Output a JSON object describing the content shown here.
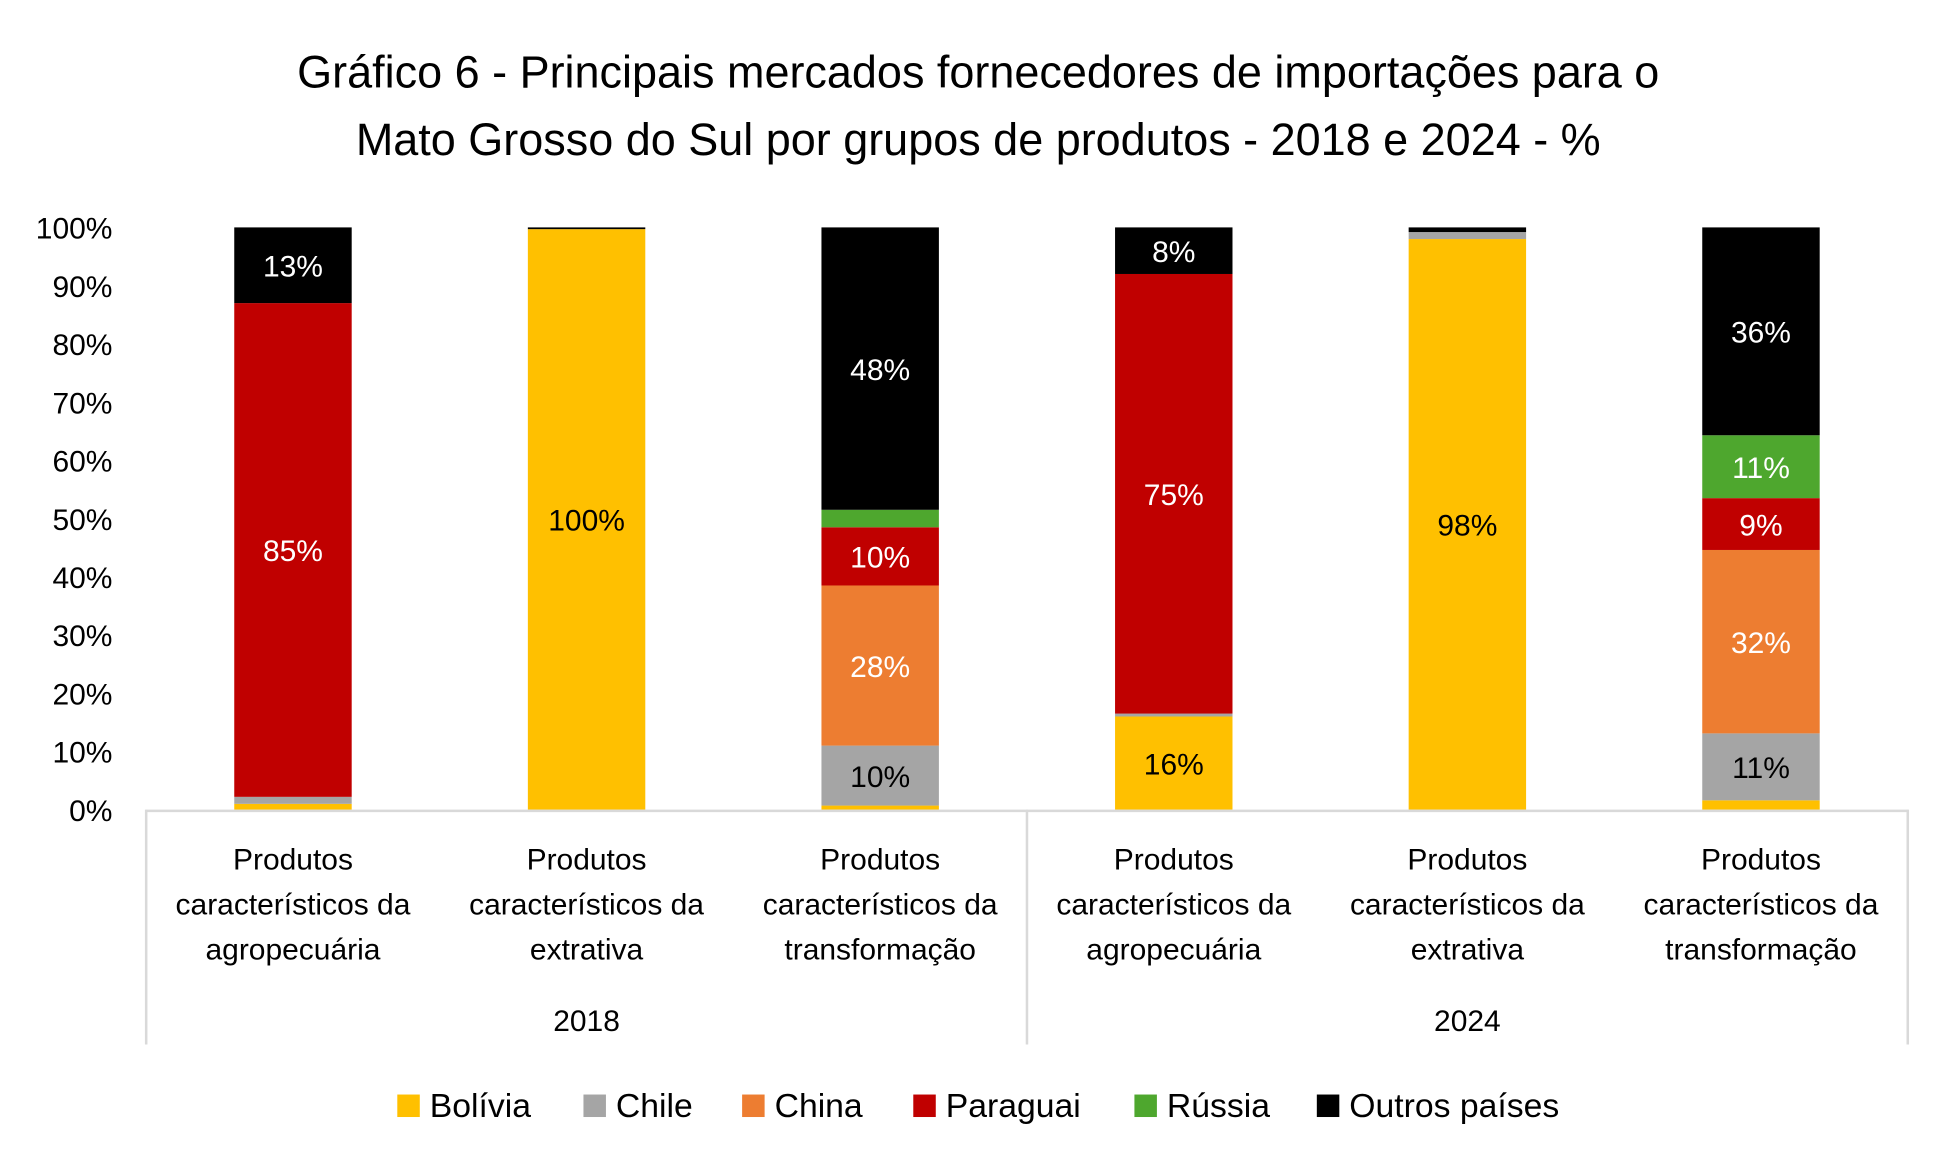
{
  "chart_data": {
    "type": "bar",
    "stacked": true,
    "title_lines": [
      "Gráfico 6 - Principais mercados fornecedores de importações para o",
      "Mato Grosso do Sul por grupos de produtos - 2018 e 2024 - %"
    ],
    "ylim": [
      0,
      100
    ],
    "yticks": [
      "0%",
      "10%",
      "20%",
      "30%",
      "40%",
      "50%",
      "60%",
      "70%",
      "80%",
      "90%",
      "100%"
    ],
    "categories": [
      {
        "lines": [
          "Produtos",
          "característicos da",
          "agropecuária"
        ],
        "group": "2018"
      },
      {
        "lines": [
          "Produtos",
          "característicos da",
          "extrativa"
        ],
        "group": "2018"
      },
      {
        "lines": [
          "Produtos",
          "característicos da",
          "transformação"
        ],
        "group": "2018"
      },
      {
        "lines": [
          "Produtos",
          "característicos da",
          "agropecuária"
        ],
        "group": "2024"
      },
      {
        "lines": [
          "Produtos",
          "característicos da",
          "extrativa"
        ],
        "group": "2024"
      },
      {
        "lines": [
          "Produtos",
          "característicos da",
          "transformação"
        ],
        "group": "2024"
      }
    ],
    "groups": [
      "2018",
      "2024"
    ],
    "legend_position": "bottom",
    "series": [
      {
        "name": "Bolívia",
        "color": "#FFC000",
        "label_color": "#000000",
        "values": [
          1,
          99.7,
          0.7,
          16,
          98,
          1.6
        ],
        "labels": [
          "",
          "100%",
          "",
          "16%",
          "98%",
          ""
        ]
      },
      {
        "name": "Chile",
        "color": "#A5A5A5",
        "label_color": "#000000",
        "values": [
          1.2,
          0,
          10.3,
          0.5,
          1.2,
          11.5
        ],
        "labels": [
          "",
          "",
          "10%",
          "",
          "",
          "11%"
        ]
      },
      {
        "name": "China",
        "color": "#ED7D31",
        "label_color": "#FFFFFF",
        "values": [
          0,
          0,
          27.5,
          0,
          0,
          31.5
        ],
        "labels": [
          "",
          "",
          "28%",
          "",
          "",
          "32%"
        ]
      },
      {
        "name": "Paraguai",
        "color": "#C00000",
        "label_color": "#FFFFFF",
        "values": [
          84.8,
          0,
          10,
          75.5,
          0,
          8.9
        ],
        "labels": [
          "85%",
          "",
          "10%",
          "75%",
          "",
          "9%"
        ]
      },
      {
        "name": "Rússia",
        "color": "#4EA72E",
        "label_color": "#FFFFFF",
        "values": [
          0,
          0,
          3,
          0,
          0,
          10.8
        ],
        "labels": [
          "",
          "",
          "",
          "",
          "",
          "11%"
        ]
      },
      {
        "name": "Outros países",
        "color": "#000000",
        "label_color": "#FFFFFF",
        "values": [
          13,
          0.3,
          48.5,
          8,
          0.8,
          35.7
        ],
        "labels": [
          "13%",
          "",
          "48%",
          "8%",
          "",
          "36%"
        ]
      }
    ]
  }
}
